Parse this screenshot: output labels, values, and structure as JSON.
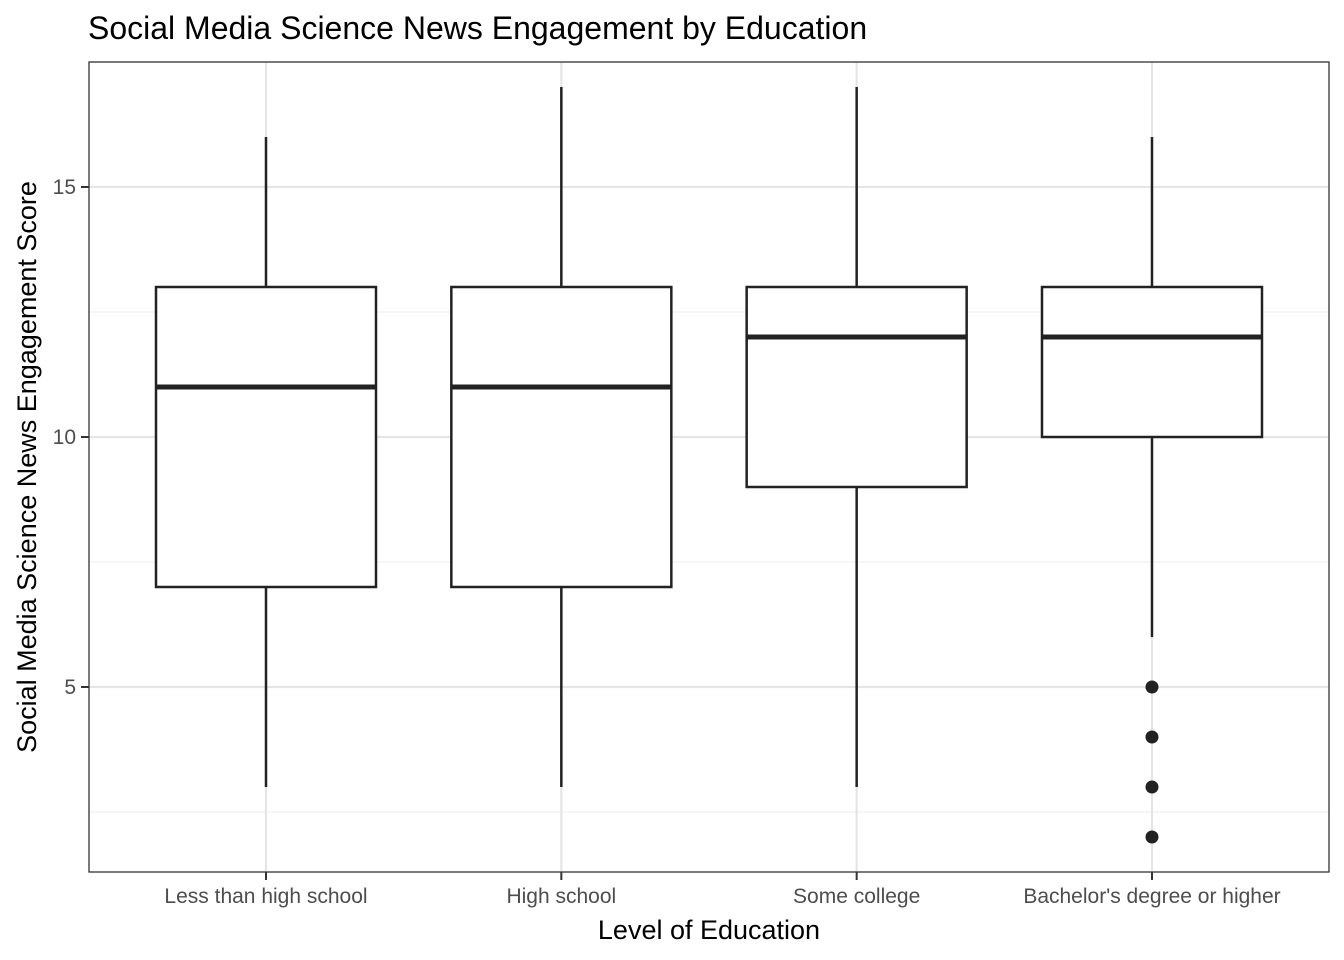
{
  "chart_data": {
    "type": "boxplot",
    "title": "Social Media Science News Engagement by Education",
    "xlabel": "Level of Education",
    "ylabel": "Social Media Science News Engagement Score",
    "ylim": [
      1.3,
      17.5
    ],
    "yticks": [
      5,
      10,
      15
    ],
    "grid": true,
    "categories": [
      "Less than high school",
      "High school",
      "Some college",
      "Bachelor's degree or higher"
    ],
    "boxes": [
      {
        "category": "Less than high school",
        "whisker_low": 3,
        "q1": 7,
        "median": 11,
        "q3": 13,
        "whisker_high": 16,
        "outliers": []
      },
      {
        "category": "High school",
        "whisker_low": 3,
        "q1": 7,
        "median": 11,
        "q3": 13,
        "whisker_high": 17,
        "outliers": []
      },
      {
        "category": "Some college",
        "whisker_low": 3,
        "q1": 9,
        "median": 12,
        "q3": 13,
        "whisker_high": 17,
        "outliers": []
      },
      {
        "category": "Bachelor's degree or higher",
        "whisker_low": 6,
        "q1": 10,
        "median": 12,
        "q3": 13,
        "whisker_high": 16,
        "outliers": [
          5,
          4,
          3,
          2
        ]
      }
    ],
    "colors": {
      "box_stroke": "#222222",
      "box_fill": "#ffffff",
      "grid_major": "#e5e5e5",
      "grid_minor": "#f0f0f0",
      "panel_border": "#333333",
      "tick_text": "#4d4d4d"
    }
  }
}
